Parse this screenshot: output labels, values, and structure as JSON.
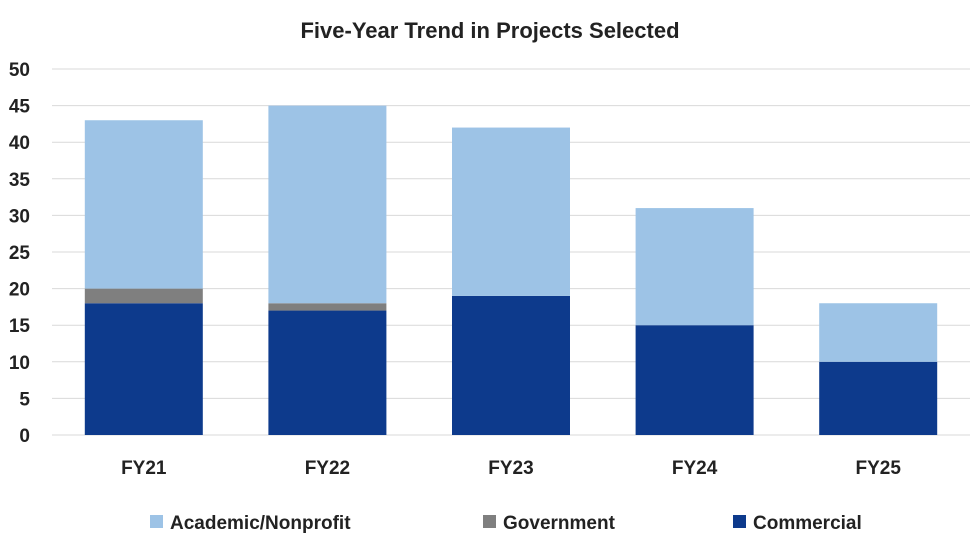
{
  "chart_data": {
    "type": "bar",
    "stacked": true,
    "title": "Five-Year Trend in Projects Selected",
    "xlabel": "",
    "ylabel": "",
    "categories": [
      "FY21",
      "FY22",
      "FY23",
      "FY24",
      "FY25"
    ],
    "series": [
      {
        "name": "Commercial",
        "color": "#0d3a8c",
        "values": [
          18,
          17,
          19,
          15,
          10
        ]
      },
      {
        "name": "Government",
        "color": "#7f7f7f",
        "values": [
          2,
          1,
          0,
          0,
          0
        ]
      },
      {
        "name": "Academic/Nonprofit",
        "color": "#9dc3e6",
        "values": [
          23,
          27,
          23,
          16,
          8
        ]
      }
    ],
    "legend_order": [
      "Academic/Nonprofit",
      "Government",
      "Commercial"
    ],
    "ylim": [
      0,
      50
    ],
    "yticks": [
      0,
      5,
      10,
      15,
      20,
      25,
      30,
      35,
      40,
      45,
      50
    ],
    "grid": true,
    "legend_position": "bottom"
  }
}
